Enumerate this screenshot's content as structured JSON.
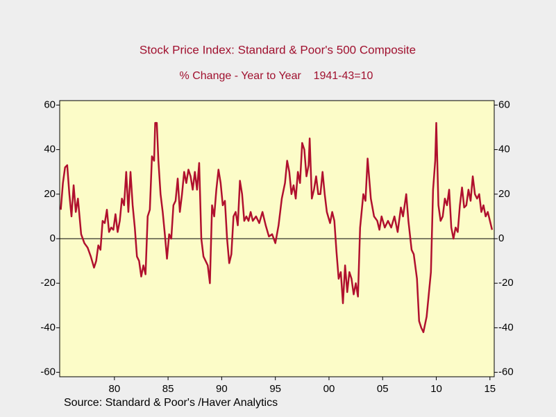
{
  "chart_data": {
    "type": "line",
    "title": "Stock Price Index: Standard & Poor's 500 Composite",
    "subtitle": "% Change - Year to Year    1941-43=10",
    "source": "Source:  Standard & Poor's /Haver Analytics",
    "x": [
      1975.0,
      1975.2,
      1975.4,
      1975.6,
      1975.8,
      1976.0,
      1976.2,
      1976.4,
      1976.6,
      1976.9,
      1977.2,
      1977.5,
      1977.8,
      1978.1,
      1978.3,
      1978.5,
      1978.7,
      1978.9,
      1979.1,
      1979.3,
      1979.5,
      1979.7,
      1979.9,
      1980.1,
      1980.3,
      1980.5,
      1980.7,
      1980.9,
      1981.1,
      1981.3,
      1981.5,
      1981.7,
      1981.9,
      1982.1,
      1982.3,
      1982.5,
      1982.7,
      1982.9,
      1983.1,
      1983.3,
      1983.5,
      1983.7,
      1983.8,
      1983.95,
      1984.1,
      1984.3,
      1984.5,
      1984.7,
      1984.9,
      1985.1,
      1985.3,
      1985.5,
      1985.7,
      1985.9,
      1986.1,
      1986.3,
      1986.5,
      1986.7,
      1986.9,
      1987.1,
      1987.3,
      1987.5,
      1987.7,
      1987.9,
      1988.1,
      1988.3,
      1988.5,
      1988.7,
      1988.9,
      1989.1,
      1989.3,
      1989.5,
      1989.7,
      1989.9,
      1990.1,
      1990.3,
      1990.5,
      1990.7,
      1990.9,
      1991.1,
      1991.3,
      1991.5,
      1991.7,
      1991.9,
      1992.1,
      1992.3,
      1992.5,
      1992.7,
      1992.9,
      1993.2,
      1993.5,
      1993.8,
      1994.1,
      1994.4,
      1994.7,
      1995.0,
      1995.3,
      1995.6,
      1995.9,
      1996.1,
      1996.3,
      1996.5,
      1996.7,
      1996.9,
      1997.1,
      1997.3,
      1997.5,
      1997.7,
      1997.9,
      1998.1,
      1998.2,
      1998.4,
      1998.6,
      1998.8,
      1999.0,
      1999.2,
      1999.4,
      1999.6,
      1999.8,
      2000.1,
      2000.3,
      2000.5,
      2000.7,
      2000.9,
      2001.1,
      2001.3,
      2001.5,
      2001.7,
      2001.9,
      2002.1,
      2002.3,
      2002.5,
      2002.7,
      2002.9,
      2003.2,
      2003.4,
      2003.6,
      2003.9,
      2004.2,
      2004.5,
      2004.7,
      2004.9,
      2005.2,
      2005.5,
      2005.8,
      2006.1,
      2006.4,
      2006.7,
      2006.9,
      2007.2,
      2007.4,
      2007.7,
      2007.9,
      2008.2,
      2008.4,
      2008.6,
      2008.8,
      2009.1,
      2009.3,
      2009.5,
      2009.7,
      2009.9,
      2010.0,
      2010.2,
      2010.4,
      2010.6,
      2010.8,
      2011.0,
      2011.2,
      2011.4,
      2011.6,
      2011.8,
      2012.0,
      2012.2,
      2012.4,
      2012.6,
      2012.8,
      2013.0,
      2013.2,
      2013.4,
      2013.6,
      2013.8,
      2014.0,
      2014.2,
      2014.4,
      2014.6,
      2014.8,
      2015.0,
      2015.2
    ],
    "series": [
      {
        "color": "#b0102e",
        "values": [
          13,
          25,
          32,
          33,
          20,
          10,
          24,
          12,
          18,
          2,
          -2,
          -4,
          -8,
          -13,
          -10,
          -3,
          -5,
          8,
          7,
          13,
          3,
          5,
          4,
          11,
          3,
          8,
          18,
          15,
          30,
          12,
          30,
          15,
          5,
          -8,
          -10,
          -17,
          -12,
          -16,
          10,
          13,
          37,
          35,
          52,
          52,
          35,
          20,
          12,
          2,
          -9,
          2,
          0,
          15,
          17,
          27,
          12,
          20,
          30,
          25,
          31,
          28,
          22,
          30,
          22,
          34,
          0,
          -8,
          -10,
          -12,
          -20,
          15,
          10,
          22,
          31,
          25,
          15,
          17,
          0,
          -11,
          -7,
          10,
          12,
          6,
          26,
          20,
          8,
          10,
          8,
          12,
          8,
          10,
          7,
          12,
          6,
          1,
          2,
          -2,
          6,
          18,
          25,
          35,
          30,
          20,
          24,
          18,
          30,
          25,
          43,
          40,
          28,
          33,
          45,
          18,
          22,
          28,
          20,
          20,
          30,
          20,
          12,
          7,
          12,
          8,
          -6,
          -18,
          -15,
          -29,
          -12,
          -24,
          -15,
          -18,
          -25,
          -20,
          -26,
          5,
          20,
          17,
          36,
          18,
          10,
          8,
          4,
          10,
          5,
          8,
          5,
          10,
          3,
          14,
          10,
          20,
          8,
          -5,
          -7,
          -18,
          -37,
          -40,
          -42,
          -35,
          -25,
          -15,
          22,
          35,
          52,
          15,
          8,
          10,
          18,
          15,
          22,
          5,
          0,
          5,
          3,
          15,
          23,
          14,
          15,
          22,
          17,
          28,
          20,
          18,
          20,
          12,
          15,
          10,
          12,
          8,
          4
        ]
      }
    ],
    "xlim": [
      1974.9,
      2015.4
    ],
    "xticks": [
      {
        "value": 1980,
        "label": "80"
      },
      {
        "value": 1985,
        "label": "85"
      },
      {
        "value": 1990,
        "label": "90"
      },
      {
        "value": 1995,
        "label": "95"
      },
      {
        "value": 2000,
        "label": "00"
      },
      {
        "value": 2005,
        "label": "05"
      },
      {
        "value": 2010,
        "label": "10"
      },
      {
        "value": 2015,
        "label": "15"
      }
    ],
    "ylim": [
      -62,
      62
    ],
    "yticks": [
      -60,
      -40,
      -20,
      0,
      20,
      40,
      60
    ],
    "y2lim": [
      -62,
      62
    ],
    "y2ticks": [
      -60,
      -40,
      -20,
      0,
      20,
      40,
      60
    ],
    "zero_line": true
  }
}
